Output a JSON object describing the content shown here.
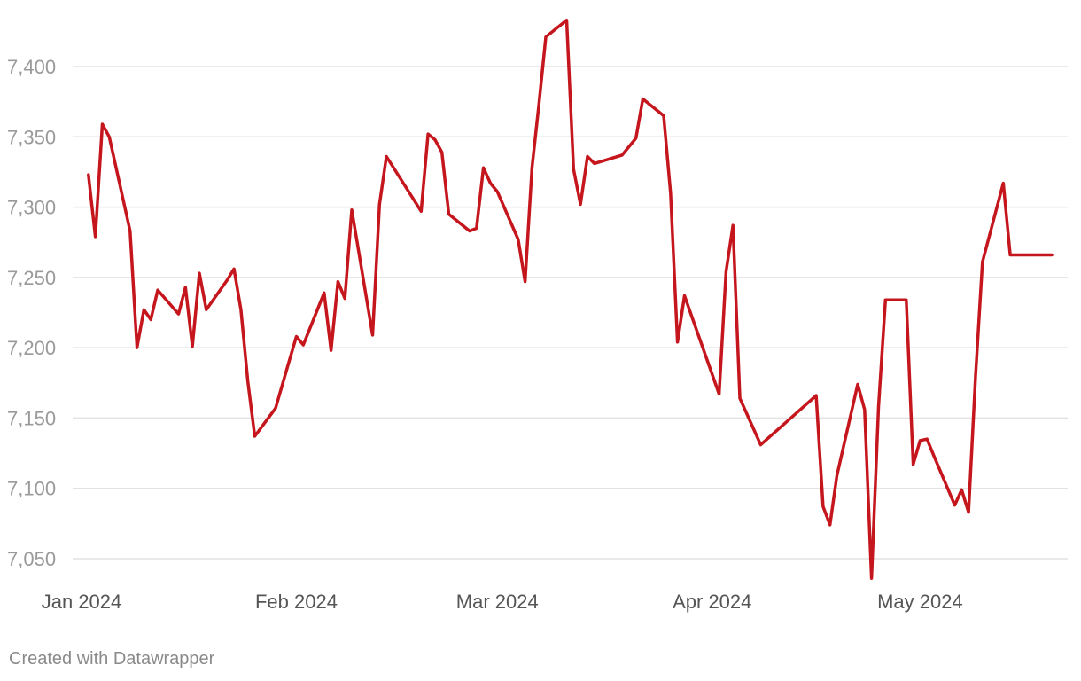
{
  "chart_data": {
    "type": "line",
    "title": "",
    "xlabel": "",
    "ylabel": "",
    "ylim": [
      7030,
      7440
    ],
    "yticks": [
      7050,
      7100,
      7150,
      7200,
      7250,
      7300,
      7350,
      7400
    ],
    "ytick_labels": [
      "7,050",
      "7,100",
      "7,150",
      "7,200",
      "7,250",
      "7,300",
      "7,350",
      "7,400"
    ],
    "xticks": [
      {
        "date": "2024-01-01",
        "label": "Jan 2024"
      },
      {
        "date": "2024-02-01",
        "label": "Feb 2024"
      },
      {
        "date": "2024-03-01",
        "label": "Mar 2024"
      },
      {
        "date": "2024-04-01",
        "label": "Apr 2024"
      },
      {
        "date": "2024-05-01",
        "label": "May 2024"
      }
    ],
    "grid": true,
    "color": "#c4161c",
    "series": [
      {
        "x": [
          "2024-01-02",
          "2024-01-03",
          "2024-01-04",
          "2024-01-05",
          "2024-01-08",
          "2024-01-09",
          "2024-01-10",
          "2024-01-11",
          "2024-01-12",
          "2024-01-15",
          "2024-01-16",
          "2024-01-17",
          "2024-01-18",
          "2024-01-19",
          "2024-01-22",
          "2024-01-23",
          "2024-01-24",
          "2024-01-25",
          "2024-01-26",
          "2024-01-29",
          "2024-01-31",
          "2024-02-01",
          "2024-02-02",
          "2024-02-05",
          "2024-02-06",
          "2024-02-07",
          "2024-02-08",
          "2024-02-09",
          "2024-02-12",
          "2024-02-13",
          "2024-02-14",
          "2024-02-19",
          "2024-02-20",
          "2024-02-21",
          "2024-02-22",
          "2024-02-23",
          "2024-02-26",
          "2024-02-27",
          "2024-02-28",
          "2024-02-29",
          "2024-03-01",
          "2024-03-04",
          "2024-03-05",
          "2024-03-06",
          "2024-03-07",
          "2024-03-08",
          "2024-03-11",
          "2024-03-12",
          "2024-03-13",
          "2024-03-14",
          "2024-03-15",
          "2024-03-19",
          "2024-03-21",
          "2024-03-22",
          "2024-03-25",
          "2024-03-26",
          "2024-03-27",
          "2024-03-28",
          "2024-04-02",
          "2024-04-03",
          "2024-04-04",
          "2024-04-05",
          "2024-04-08",
          "2024-04-16",
          "2024-04-17",
          "2024-04-18",
          "2024-04-19",
          "2024-04-22",
          "2024-04-23",
          "2024-04-24",
          "2024-04-25",
          "2024-04-26",
          "2024-04-29",
          "2024-04-30",
          "2024-05-01",
          "2024-05-02",
          "2024-05-03",
          "2024-05-06",
          "2024-05-07",
          "2024-05-08",
          "2024-05-09",
          "2024-05-10",
          "2024-05-13",
          "2024-05-14",
          "2024-05-15",
          "2024-05-16",
          "2024-05-17",
          "2024-05-20"
        ],
        "y": [
          7323,
          7279,
          7359,
          7350,
          7283,
          7200,
          7227,
          7220,
          7241,
          7224,
          7243,
          7201,
          7253,
          7227,
          7248,
          7256,
          7227,
          7176,
          7137,
          7157,
          7191,
          7208,
          7202,
          7239,
          7198,
          7247,
          7235,
          7298,
          7209,
          7302,
          7336,
          7297,
          7352,
          7348,
          7339,
          7295,
          7283,
          7285,
          7328,
          7317,
          7311,
          7277,
          7247,
          7328,
          7373,
          7421,
          7433,
          7327,
          7302,
          7336,
          7331,
          7337,
          7349,
          7377,
          7365,
          7310,
          7204,
          7237,
          7167,
          7254,
          7287,
          7164,
          7131,
          7166,
          7087,
          7074,
          7109,
          7174,
          7156,
          7036,
          7158,
          7234,
          7234,
          7117,
          7134,
          7135,
          7123,
          7088,
          7099,
          7083,
          7180,
          7261,
          7317,
          7266,
          7266,
          7266,
          7266,
          7266
        ]
      }
    ]
  },
  "footer": {
    "credit": "Created with Datawrapper"
  }
}
